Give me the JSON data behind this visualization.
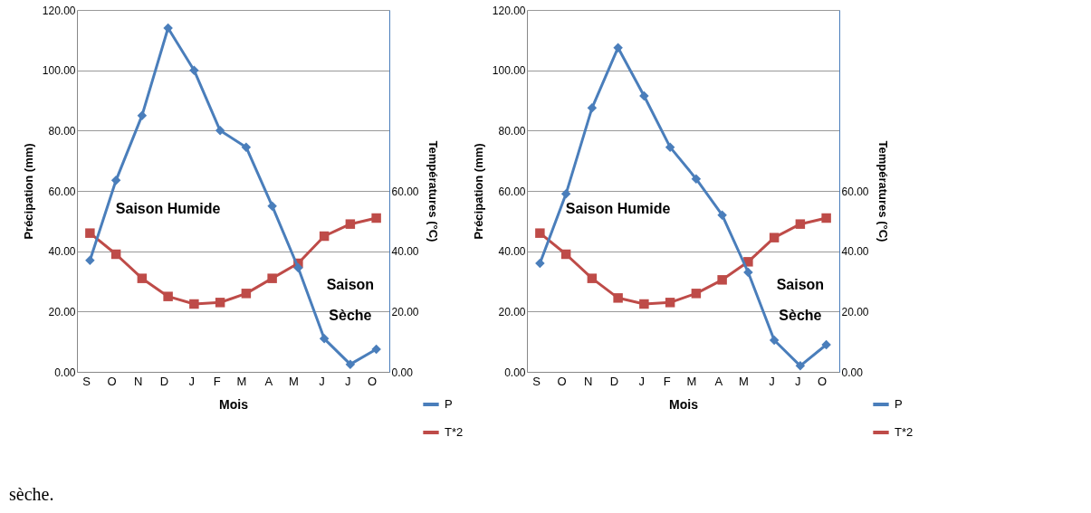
{
  "chart_data": [
    {
      "type": "line",
      "xlabel": "Mois",
      "ylabel": "Précipation (mm)",
      "y2label": "Températures (°C)",
      "categories": [
        "S",
        "O",
        "N",
        "D",
        "J",
        "F",
        "M",
        "A",
        "M",
        "J",
        "J",
        "O"
      ],
      "series": [
        {
          "name": "P",
          "color": "#4a7ebb",
          "marker": "diamond",
          "values": [
            37,
            63.5,
            85,
            114,
            100,
            80,
            74.5,
            55,
            34.5,
            11,
            2.5,
            7.5
          ]
        },
        {
          "name": "T*2",
          "color": "#be4b48",
          "marker": "square",
          "axis": "y2",
          "values": [
            46,
            39,
            31,
            25,
            22.5,
            23,
            26,
            31,
            36,
            45,
            49,
            51
          ]
        }
      ],
      "ylim": [
        0,
        120
      ],
      "yticks": [
        {
          "value": 0,
          "label": "0.00"
        },
        {
          "value": 20,
          "label": "20.00"
        },
        {
          "value": 40,
          "label": "40.00"
        },
        {
          "value": 60,
          "label": "60.00"
        },
        {
          "value": 80,
          "label": "80.00"
        },
        {
          "value": 100,
          "label": "100.00"
        },
        {
          "value": 120,
          "label": "120.00"
        }
      ],
      "y2lim": [
        0,
        120
      ],
      "y2ticks": [
        {
          "value": 0,
          "label": "0.00"
        },
        {
          "value": 20,
          "label": "20.00"
        },
        {
          "value": 40,
          "label": "40.00"
        },
        {
          "value": 60,
          "label": "60.00"
        }
      ],
      "grid": "y",
      "legend": "bottom right",
      "annotations": [
        "Saison Humide",
        "Saison Sèche",
        "sèche."
      ]
    },
    {
      "type": "line",
      "xlabel": "Mois",
      "ylabel": "Précipation (mm)",
      "y2label": "Températures (°C)",
      "categories": [
        "S",
        "O",
        "N",
        "D",
        "J",
        "F",
        "M",
        "A",
        "M",
        "J",
        "J",
        "O"
      ],
      "series": [
        {
          "name": "P",
          "color": "#4a7ebb",
          "marker": "diamond",
          "values": [
            36,
            59,
            87.5,
            107.5,
            91.5,
            74.5,
            64,
            52,
            33,
            10.5,
            2,
            9
          ]
        },
        {
          "name": "T*2",
          "color": "#be4b48",
          "marker": "square",
          "axis": "y2",
          "values": [
            46,
            39,
            31,
            24.5,
            22.5,
            23,
            26,
            30.5,
            36.5,
            44.5,
            49,
            51
          ]
        }
      ],
      "ylim": [
        0,
        120
      ],
      "yticks": [
        {
          "value": 0,
          "label": "0.00"
        },
        {
          "value": 20,
          "label": "20.00"
        },
        {
          "value": 40,
          "label": "40.00"
        },
        {
          "value": 60,
          "label": "60.00"
        },
        {
          "value": 80,
          "label": "80.00"
        },
        {
          "value": 100,
          "label": "100.00"
        },
        {
          "value": 120,
          "label": "120.00"
        }
      ],
      "y2lim": [
        0,
        120
      ],
      "y2ticks": [
        {
          "value": 0,
          "label": "0.00"
        },
        {
          "value": 20,
          "label": "20.00"
        },
        {
          "value": 40,
          "label": "40.00"
        },
        {
          "value": 60,
          "label": "60.00"
        }
      ],
      "grid": "y",
      "legend": "bottom right",
      "annotations": [
        "Saison Humide",
        "Saison Sèche"
      ]
    }
  ]
}
